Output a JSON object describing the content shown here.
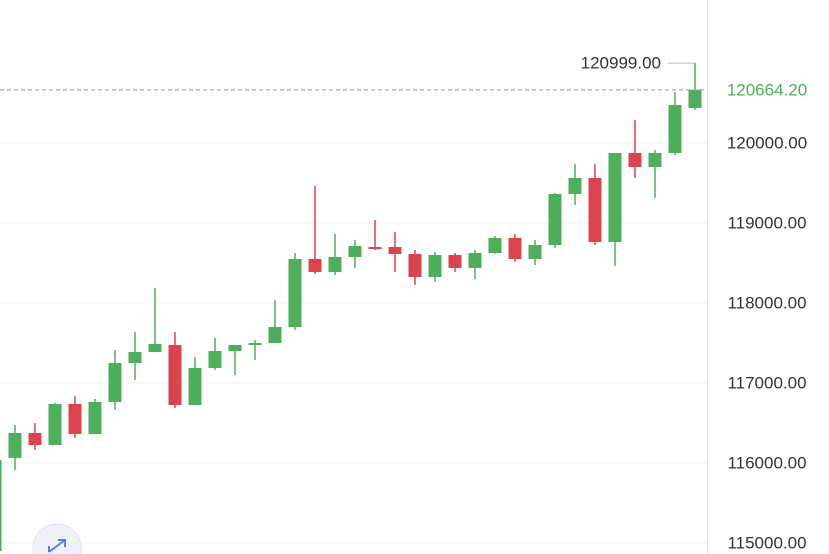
{
  "chart_data": {
    "type": "candlestick",
    "up_color": "#4fae5b",
    "down_color": "#d9444f",
    "grid": true,
    "ylim": [
      114862.5,
      121787.5
    ],
    "yticks": [
      {
        "value": 115000,
        "label": "115000.00"
      },
      {
        "value": 116000,
        "label": "116000.00"
      },
      {
        "value": 117000,
        "label": "117000.00"
      },
      {
        "value": 118000,
        "label": "118000.00"
      },
      {
        "value": 119000,
        "label": "119000.00"
      },
      {
        "value": 120000,
        "label": "120000.00"
      }
    ],
    "last_price": {
      "value": 120664.2,
      "label": "120664.20",
      "color": "#4fae5b"
    },
    "high_label": "120999.00",
    "candles": [
      {
        "open": 114900,
        "high": 116100,
        "low": 114850,
        "close": 116038
      },
      {
        "open": 116063,
        "high": 116475,
        "low": 115913,
        "close": 116375
      },
      {
        "open": 116375,
        "high": 116500,
        "low": 116163,
        "close": 116225
      },
      {
        "open": 116225,
        "high": 116750,
        "low": 116225,
        "close": 116738
      },
      {
        "open": 116738,
        "high": 116838,
        "low": 116313,
        "close": 116363
      },
      {
        "open": 116363,
        "high": 116800,
        "low": 116363,
        "close": 116763
      },
      {
        "open": 116763,
        "high": 117413,
        "low": 116663,
        "close": 117250
      },
      {
        "open": 117250,
        "high": 117638,
        "low": 117038,
        "close": 117388
      },
      {
        "open": 117388,
        "high": 118188,
        "low": 117388,
        "close": 117488
      },
      {
        "open": 117475,
        "high": 117638,
        "low": 116688,
        "close": 116725
      },
      {
        "open": 116725,
        "high": 117325,
        "low": 116725,
        "close": 117188
      },
      {
        "open": 117188,
        "high": 117563,
        "low": 117163,
        "close": 117400
      },
      {
        "open": 117400,
        "high": 117475,
        "low": 117100,
        "close": 117475
      },
      {
        "open": 117475,
        "high": 117538,
        "low": 117288,
        "close": 117500
      },
      {
        "open": 117500,
        "high": 118038,
        "low": 117500,
        "close": 117700
      },
      {
        "open": 117700,
        "high": 118625,
        "low": 117663,
        "close": 118550
      },
      {
        "open": 118550,
        "high": 119463,
        "low": 118363,
        "close": 118388
      },
      {
        "open": 118388,
        "high": 118863,
        "low": 118350,
        "close": 118575
      },
      {
        "open": 118575,
        "high": 118788,
        "low": 118438,
        "close": 118713
      },
      {
        "open": 118700,
        "high": 119038,
        "low": 118663,
        "close": 118675
      },
      {
        "open": 118700,
        "high": 118888,
        "low": 118388,
        "close": 118613
      },
      {
        "open": 118613,
        "high": 118663,
        "low": 118225,
        "close": 118325
      },
      {
        "open": 118325,
        "high": 118638,
        "low": 118263,
        "close": 118600
      },
      {
        "open": 118600,
        "high": 118625,
        "low": 118388,
        "close": 118438
      },
      {
        "open": 118438,
        "high": 118663,
        "low": 118300,
        "close": 118625
      },
      {
        "open": 118625,
        "high": 118838,
        "low": 118613,
        "close": 118813
      },
      {
        "open": 118813,
        "high": 118863,
        "low": 118513,
        "close": 118550
      },
      {
        "open": 118550,
        "high": 118788,
        "low": 118475,
        "close": 118725
      },
      {
        "open": 118725,
        "high": 119375,
        "low": 118688,
        "close": 119363
      },
      {
        "open": 119363,
        "high": 119738,
        "low": 119225,
        "close": 119563
      },
      {
        "open": 119563,
        "high": 119738,
        "low": 118725,
        "close": 118763
      },
      {
        "open": 118763,
        "high": 119875,
        "low": 118463,
        "close": 119875
      },
      {
        "open": 119875,
        "high": 120288,
        "low": 119563,
        "close": 119700
      },
      {
        "open": 119700,
        "high": 119913,
        "low": 119313,
        "close": 119875
      },
      {
        "open": 119875,
        "high": 120638,
        "low": 119850,
        "close": 120475
      },
      {
        "open": 120438,
        "high": 120999,
        "low": 120413,
        "close": 120664.2
      }
    ]
  }
}
